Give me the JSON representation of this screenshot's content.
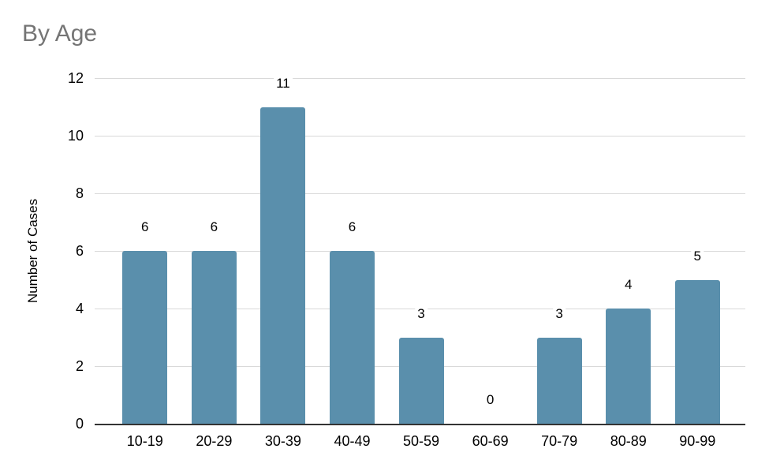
{
  "chart_data": {
    "type": "bar",
    "title": "By Age",
    "categories": [
      "10-19",
      "20-29",
      "30-39",
      "40-49",
      "50-59",
      "60-69",
      "70-79",
      "80-89",
      "90-99"
    ],
    "values": [
      6,
      6,
      11,
      6,
      3,
      0,
      3,
      4,
      5
    ],
    "xlabel": "",
    "ylabel": "Number of Cases",
    "ylim": [
      0,
      12
    ],
    "yticks": [
      0,
      2,
      4,
      6,
      8,
      10,
      12
    ],
    "grid": true,
    "legend": "none",
    "data_labels": true,
    "colors": {
      "bar": "#5a8fac",
      "title": "#757575",
      "gridline": "#d9d9d9",
      "axis_line": "#333333",
      "text": "#000000"
    }
  }
}
